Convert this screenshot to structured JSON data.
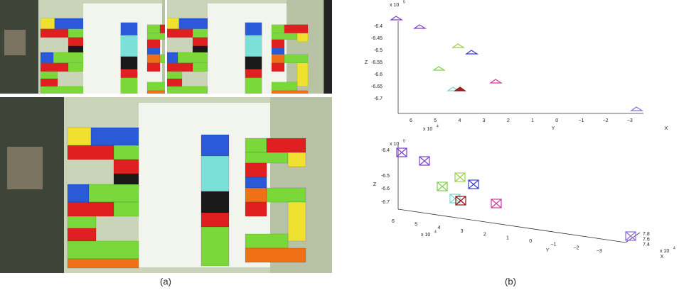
{
  "panel_a": {
    "caption": "(a)"
  },
  "panel_b": {
    "caption": "(b)",
    "top_plot": {
      "z_ticks": [
        "-6.4",
        "-6.45",
        "-6.5",
        "-6.55",
        "-6.6",
        "-6.65",
        "-6.7"
      ],
      "z_exponent": {
        "base": "x 10",
        "exp": "5"
      },
      "z_label": "Z",
      "y_ticks": [
        "6",
        "5",
        "4",
        "3",
        "2",
        "1",
        "0",
        "−1",
        "−2",
        "−3"
      ],
      "y_exponent": {
        "base": "x 10",
        "exp": "4"
      },
      "y_label": "Y",
      "x_label": "X"
    },
    "bottom_plot": {
      "z_ticks": [
        "-6.4",
        "-6.5",
        "-6.6",
        "-6.7"
      ],
      "z_exponent": {
        "base": "x 10",
        "exp": "5"
      },
      "z_label": "Z",
      "y_ticks": [
        "6",
        "5",
        "4",
        "3",
        "2",
        "1",
        "0",
        "−1",
        "−2",
        "−3"
      ],
      "y_exponent": {
        "base": "x 10",
        "exp": "4"
      },
      "y_label": "Y",
      "x_ticks": [
        "7.8",
        "7.6",
        "7.4"
      ],
      "x_exponent": {
        "base": "x 10",
        "exp": "4"
      },
      "x_label": "X"
    }
  }
}
